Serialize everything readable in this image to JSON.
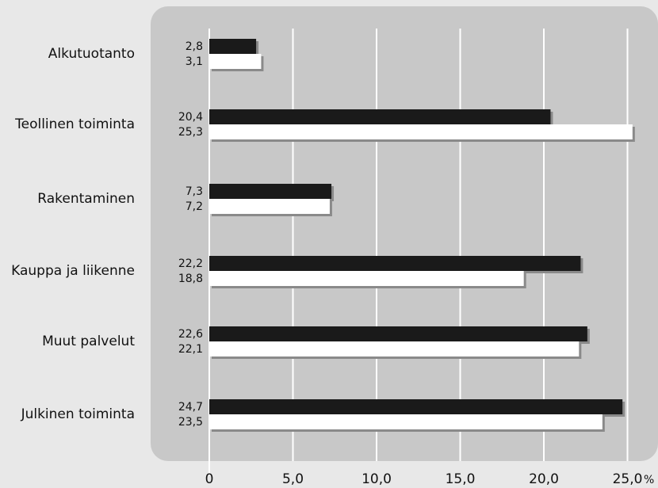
{
  "chart_data": {
    "type": "bar",
    "orientation": "horizontal",
    "categories": [
      "Alkutuotanto",
      "Teollinen toiminta",
      "Rakentaminen",
      "Kauppa ja liikenne",
      "Muut palvelut",
      "Julkinen toiminta"
    ],
    "series": [
      {
        "color": "#1a1a1a",
        "values": [
          2.8,
          20.4,
          7.3,
          22.2,
          22.6,
          24.7
        ]
      },
      {
        "color": "#ffffff",
        "values": [
          3.1,
          25.3,
          7.2,
          18.8,
          22.1,
          23.5
        ]
      }
    ],
    "value_labels": [
      [
        "2,8",
        "20,4",
        "7,3",
        "22,2",
        "22,6",
        "24,7"
      ],
      [
        "3,1",
        "25,3",
        "7,2",
        "18,8",
        "22,1",
        "23,5"
      ]
    ],
    "xlim": [
      0,
      25
    ],
    "xticks": [
      0,
      5,
      10,
      15,
      20,
      25
    ],
    "xtick_labels": [
      "0",
      "5,0",
      "10,0",
      "15,0",
      "20,0",
      "25,0"
    ],
    "x_unit": "%",
    "grid": true,
    "gridline_color": "#ffffff"
  }
}
